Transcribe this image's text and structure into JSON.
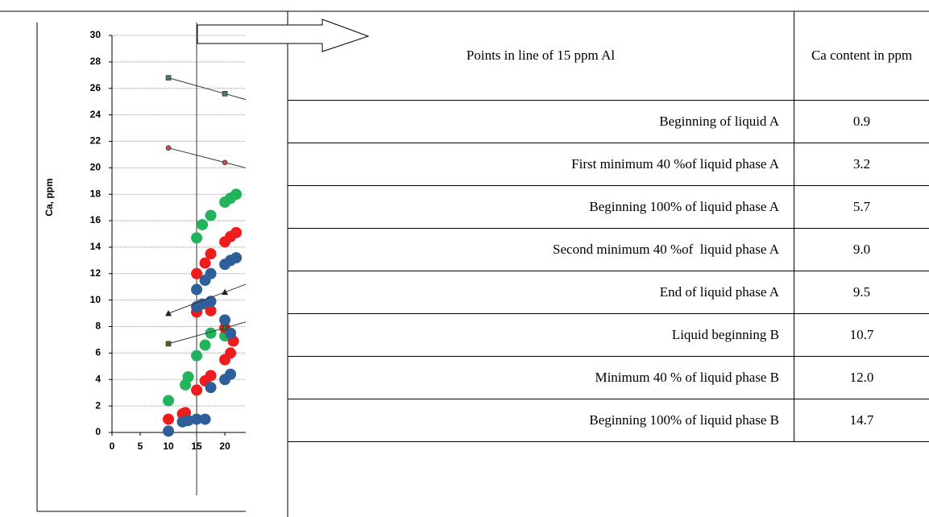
{
  "chart_data": {
    "type": "scatter",
    "y_label": "Ca, ppm",
    "xlim": [
      0,
      23.7
    ],
    "ylim": [
      0,
      30
    ],
    "xticks": [
      0,
      5,
      10,
      15,
      20
    ],
    "yticks": [
      0,
      2,
      4,
      6,
      8,
      10,
      12,
      14,
      16,
      18,
      20,
      22,
      24,
      26,
      28,
      30
    ],
    "grid": true,
    "reference_line_x": 15,
    "series": [
      {
        "color": "#22b35c",
        "x": [
          10,
          13,
          13.5,
          15,
          16.5,
          17.5,
          20,
          15,
          16,
          17.5,
          20,
          21,
          22
        ],
        "values": [
          2.4,
          3.6,
          4.2,
          5.8,
          6.6,
          7.5,
          7.3,
          14.7,
          15.7,
          16.4,
          17.4,
          17.7,
          18.0
        ]
      },
      {
        "color": "#ee1c1c",
        "x": [
          10,
          12.5,
          13,
          15,
          16.5,
          17.5,
          20,
          21,
          21.5,
          15,
          17.5,
          20,
          15,
          16.5,
          17.5,
          20,
          21,
          22
        ],
        "values": [
          1.0,
          1.4,
          1.5,
          3.2,
          3.9,
          4.3,
          5.5,
          6.0,
          6.9,
          9.1,
          9.2,
          7.9,
          12.0,
          12.8,
          13.5,
          14.4,
          14.8,
          15.1
        ]
      },
      {
        "color": "#2e5f9a",
        "x": [
          10,
          12.5,
          13.5,
          15,
          16.5,
          17.5,
          20,
          21,
          15,
          16,
          17.5,
          20,
          21,
          15,
          16.5,
          17.5,
          20,
          21,
          22
        ],
        "values": [
          0.1,
          0.8,
          0.9,
          1.0,
          1.0,
          3.4,
          4.0,
          4.4,
          9.5,
          9.7,
          9.9,
          8.5,
          7.5,
          10.8,
          11.5,
          12.0,
          12.7,
          13.0,
          13.2
        ]
      },
      {
        "type": "line",
        "marker": "square",
        "color": "#4a7a5c",
        "x": [
          10,
          20
        ],
        "values": [
          26.8,
          25.6
        ]
      },
      {
        "type": "line",
        "marker": "circle",
        "color": "#c0504d",
        "x": [
          10,
          20
        ],
        "values": [
          21.5,
          20.4
        ]
      },
      {
        "type": "line",
        "marker": "triangle",
        "color": "#222222",
        "x": [
          10,
          20
        ],
        "values": [
          9.0,
          10.6
        ]
      },
      {
        "type": "line",
        "marker": "square",
        "color": "#5a5a2a",
        "x": [
          10,
          20
        ],
        "values": [
          6.7,
          7.9
        ]
      }
    ]
  },
  "table": {
    "header": [
      "Points in line of 15 ppm Al",
      "Ca content in ppm"
    ],
    "rows": [
      [
        "Beginning of liquid A",
        "0.9"
      ],
      [
        "First minimum 40 %of liquid phase A",
        "3.2"
      ],
      [
        "Beginning 100% of liquid phase A",
        "5.7"
      ],
      [
        "Second minimum 40 %of  liquid phase A",
        "9.0"
      ],
      [
        "End of liquid phase A",
        "9.5"
      ],
      [
        "Liquid beginning B",
        "10.7"
      ],
      [
        "Minimum 40 % of liquid phase B",
        "12.0"
      ],
      [
        "Beginning 100% of liquid phase B",
        "14.7"
      ]
    ]
  }
}
